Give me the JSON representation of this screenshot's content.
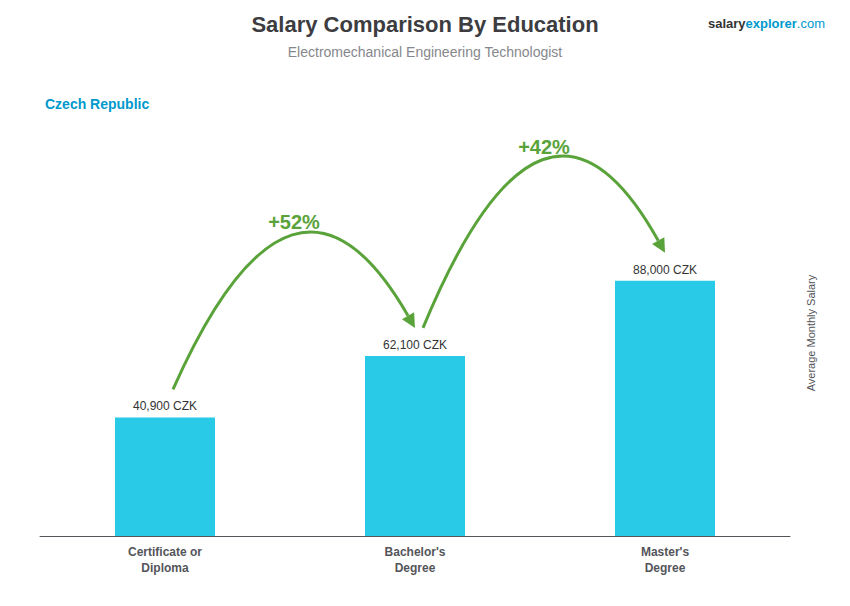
{
  "chart_data": {
    "type": "bar",
    "title": "Salary Comparison By Education",
    "subtitle": "Electromechanical Engineering Technologist",
    "country": "Czech Republic",
    "source": [
      "salary",
      "explorer",
      ".com"
    ],
    "y_label": "Average Monthly Salary",
    "categories": [
      "Certificate or\nDiploma",
      "Bachelor's\nDegree",
      "Master's\nDegree"
    ],
    "values": [
      40900,
      62100,
      88000
    ],
    "value_labels": [
      "40,900 CZK",
      "62,100 CZK",
      "88,000 CZK"
    ],
    "data_labels": true,
    "annotations": [
      "+52%",
      "+42%"
    ],
    "color": "#29c9e8",
    "ylim": [
      0,
      140000
    ],
    "yticks": [
      0,
      20000,
      40000,
      60000,
      80000,
      100000,
      120000,
      140000
    ],
    "tick_labels": "x",
    "grid": false
  }
}
